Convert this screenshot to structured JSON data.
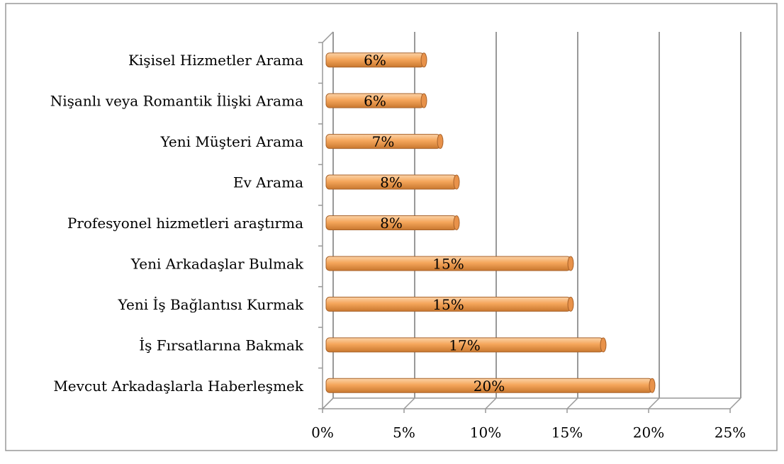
{
  "chart_data": {
    "type": "bar",
    "orientation": "horizontal",
    "categories": [
      "Kişisel Hizmetler Arama",
      "Nişanlı veya Romantik İlişki Arama",
      "Yeni Müşteri Arama",
      "Ev Arama",
      "Profesyonel hizmetleri araştırma",
      "Yeni Arkadaşlar Bulmak",
      "Yeni İş Bağlantısı Kurmak",
      "İş Fırsatlarına Bakmak",
      "Mevcut Arkadaşlarla Haberleşmek"
    ],
    "values": [
      6,
      6,
      7,
      8,
      8,
      15,
      15,
      17,
      20
    ],
    "value_labels": [
      "6%",
      "6%",
      "7%",
      "8%",
      "8%",
      "15%",
      "15%",
      "17%",
      "20%"
    ],
    "color": "#f5a65b",
    "xlim": [
      0,
      25
    ],
    "xticks": [
      {
        "value": 0,
        "label": "0%"
      },
      {
        "value": 5,
        "label": "5%"
      },
      {
        "value": 10,
        "label": "10%"
      },
      {
        "value": 15,
        "label": "15%"
      },
      {
        "value": 20,
        "label": "20%"
      },
      {
        "value": 25,
        "label": "25%"
      }
    ],
    "grid": true
  }
}
